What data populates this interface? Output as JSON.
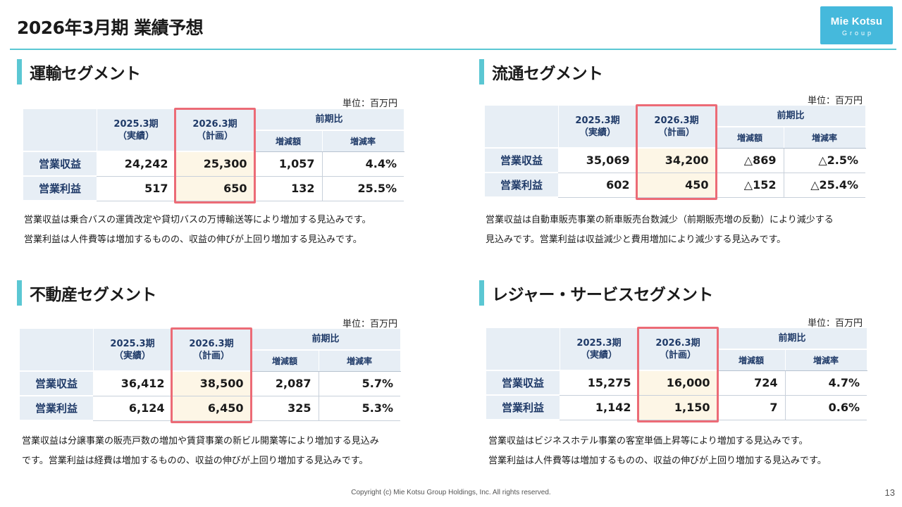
{
  "page": {
    "title": "2026年3月期 業績予想",
    "logo_line1": "Mie Kotsu",
    "logo_line2": "Group",
    "copyright": "Copyright (c) Mie Kotsu Group Holdings, Inc. All rights reserved.",
    "page_number": "13",
    "accent_color": "#5bc7d3",
    "highlight_color": "#ec6b76"
  },
  "segments": [
    {
      "title": "運輸セグメント",
      "unit": "単位：百万円",
      "headers": {
        "col_prev": "2025.3期",
        "col_prev_sub": "（実績）",
        "col_plan": "2026.3期",
        "col_plan_sub": "（計画）",
        "col_yoy": "前期比",
        "col_diff": "増減額",
        "col_rate": "増減率"
      },
      "rows": [
        {
          "label": "営業収益",
          "prev": "24,242",
          "plan": "25,300",
          "diff": "1,057",
          "rate": "4.4%"
        },
        {
          "label": "営業利益",
          "prev": "517",
          "plan": "650",
          "diff": "132",
          "rate": "25.5%"
        }
      ],
      "desc_lines": [
        "営業収益は乗合バスの運賃改定や貸切バスの万博輸送等により増加する見込みです。",
        "営業利益は人件費等は増加するものの、収益の伸びが上回り増加する見込みです。"
      ]
    },
    {
      "title": "流通セグメント",
      "unit": "単位：百万円",
      "headers": {
        "col_prev": "2025.3期",
        "col_prev_sub": "（実績）",
        "col_plan": "2026.3期",
        "col_plan_sub": "（計画）",
        "col_yoy": "前期比",
        "col_diff": "増減額",
        "col_rate": "増減率"
      },
      "rows": [
        {
          "label": "営業収益",
          "prev": "35,069",
          "plan": "34,200",
          "diff": "△869",
          "rate": "△2.5%"
        },
        {
          "label": "営業利益",
          "prev": "602",
          "plan": "450",
          "diff": "△152",
          "rate": "△25.4%"
        }
      ],
      "desc_lines": [
        "営業収益は自動車販売事業の新車販売台数減少（前期販売増の反動）により減少する",
        "見込みです。営業利益は収益減少と費用増加により減少する見込みです。"
      ]
    },
    {
      "title": "不動産セグメント",
      "unit": "単位：百万円",
      "headers": {
        "col_prev": "2025.3期",
        "col_prev_sub": "（実績）",
        "col_plan": "2026.3期",
        "col_plan_sub": "（計画）",
        "col_yoy": "前期比",
        "col_diff": "増減額",
        "col_rate": "増減率"
      },
      "rows": [
        {
          "label": "営業収益",
          "prev": "36,412",
          "plan": "38,500",
          "diff": "2,087",
          "rate": "5.7%"
        },
        {
          "label": "営業利益",
          "prev": "6,124",
          "plan": "6,450",
          "diff": "325",
          "rate": "5.3%"
        }
      ],
      "desc_lines": [
        "営業収益は分譲事業の販売戸数の増加や賃貸事業の新ビル開業等により増加する見込み",
        "です。営業利益は経費は増加するものの、収益の伸びが上回り増加する見込みです。"
      ]
    },
    {
      "title": "レジャー・サービスセグメント",
      "unit": "単位：百万円",
      "headers": {
        "col_prev": "2025.3期",
        "col_prev_sub": "（実績）",
        "col_plan": "2026.3期",
        "col_plan_sub": "（計画）",
        "col_yoy": "前期比",
        "col_diff": "増減額",
        "col_rate": "増減率"
      },
      "rows": [
        {
          "label": "営業収益",
          "prev": "15,275",
          "plan": "16,000",
          "diff": "724",
          "rate": "4.7%"
        },
        {
          "label": "営業利益",
          "prev": "1,142",
          "plan": "1,150",
          "diff": "7",
          "rate": "0.6%"
        }
      ],
      "desc_lines": [
        "営業収益はビジネスホテル事業の客室単価上昇等により増加する見込みです。",
        "営業利益は人件費等は増加するものの、収益の伸びが上回り増加する見込みです。"
      ]
    }
  ]
}
